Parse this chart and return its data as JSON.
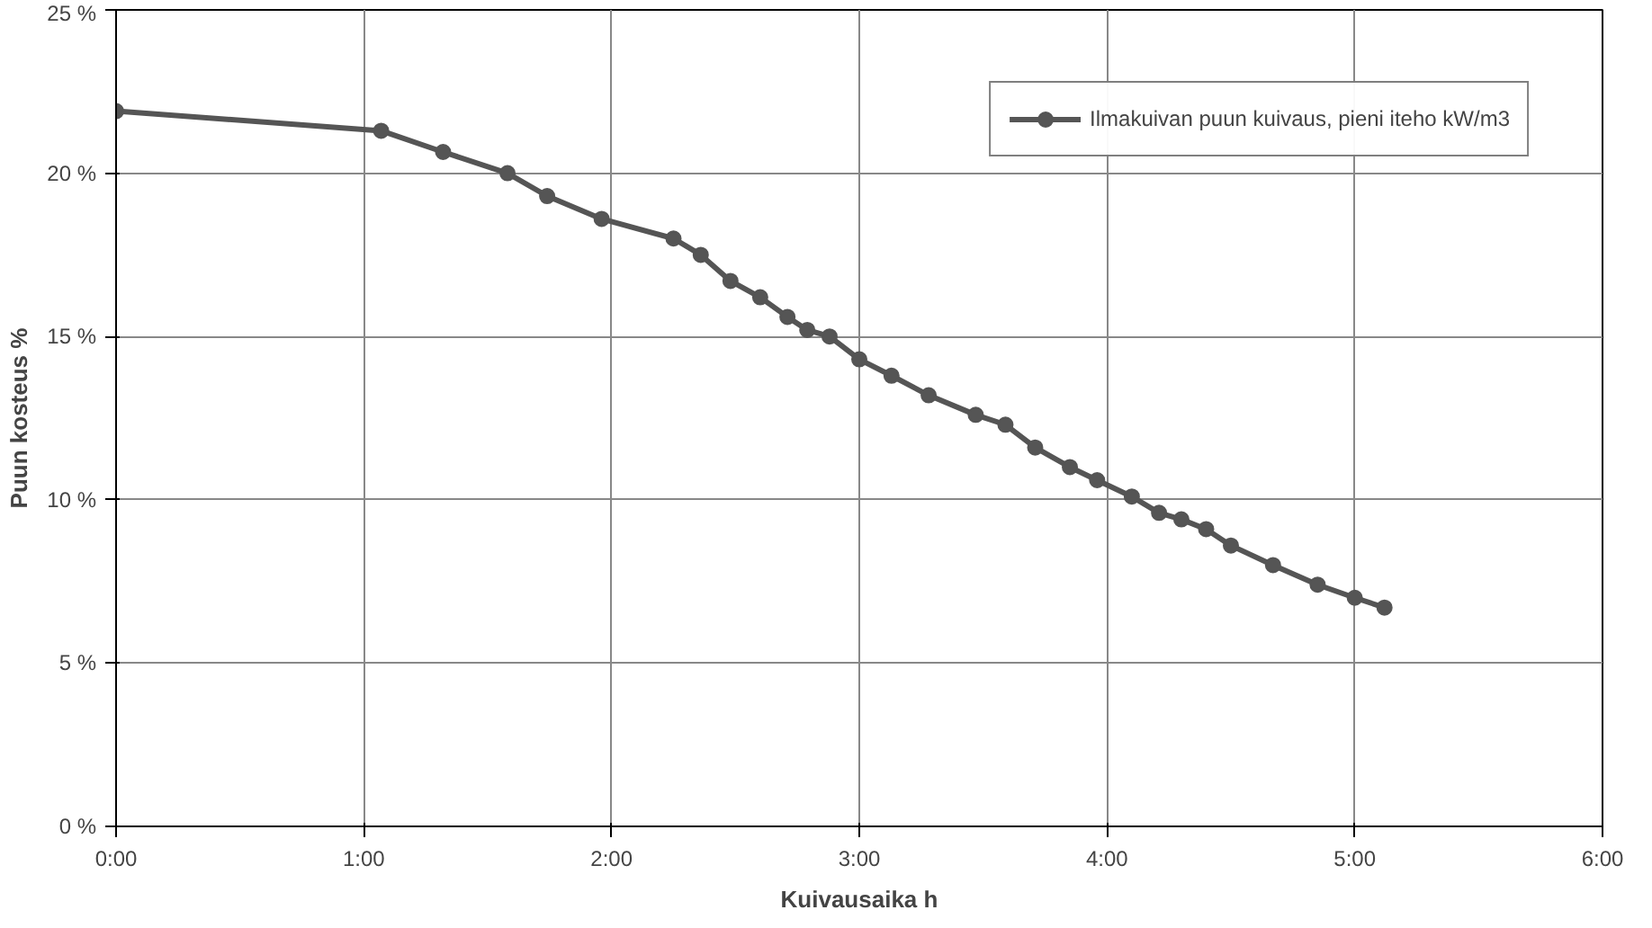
{
  "chart_data": {
    "type": "line",
    "xlabel": "Kuivausaika h",
    "ylabel": "Puun kosteus %",
    "x": [
      0,
      1.07,
      1.32,
      1.58,
      1.74,
      1.96,
      2.25,
      2.36,
      2.48,
      2.6,
      2.71,
      2.79,
      2.88,
      3.0,
      3.13,
      3.28,
      3.47,
      3.59,
      3.71,
      3.85,
      3.96,
      4.1,
      4.21,
      4.3,
      4.4,
      4.5,
      4.67,
      4.85,
      5.0,
      5.12
    ],
    "series": [
      {
        "name": "Ilmakuivan puun kuivaus, pieni iteho kW/m3",
        "color": "#555555",
        "values": [
          21.9,
          21.3,
          20.65,
          20.0,
          19.3,
          18.6,
          18.0,
          17.5,
          16.7,
          16.2,
          15.6,
          15.2,
          15.0,
          14.3,
          13.8,
          13.2,
          12.6,
          12.3,
          11.6,
          11.0,
          10.6,
          10.1,
          9.6,
          9.4,
          9.1,
          8.6,
          8.0,
          7.4,
          7.0,
          6.7
        ]
      }
    ],
    "xlim": [
      0,
      6
    ],
    "xticks": [
      {
        "value": 0,
        "label": "0:00"
      },
      {
        "value": 1,
        "label": "1:00"
      },
      {
        "value": 2,
        "label": "2:00"
      },
      {
        "value": 3,
        "label": "3:00"
      },
      {
        "value": 4,
        "label": "4:00"
      },
      {
        "value": 5,
        "label": "5:00"
      },
      {
        "value": 6,
        "label": "6:00"
      }
    ],
    "ylim": [
      0,
      25
    ],
    "yticks": [
      {
        "value": 0,
        "label": "0 %"
      },
      {
        "value": 5,
        "label": "5 %"
      },
      {
        "value": 10,
        "label": "10 %"
      },
      {
        "value": 15,
        "label": "15 %"
      },
      {
        "value": 20,
        "label": "20 %"
      },
      {
        "value": 25,
        "label": "25 %"
      }
    ],
    "grid": true,
    "legend": "top right",
    "marker": "circle",
    "line_style": "solid"
  }
}
